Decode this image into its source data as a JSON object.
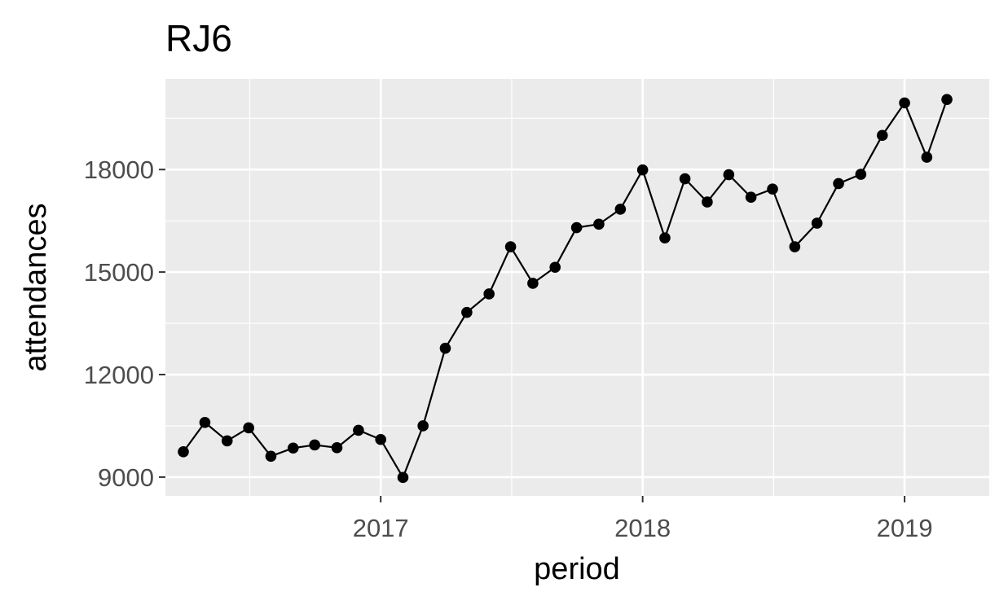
{
  "chart_data": {
    "type": "line",
    "title": "RJ6",
    "xlabel": "period",
    "ylabel": "attendances",
    "grid": true,
    "legend": "none",
    "colors": {
      "panel": "#ebebeb",
      "grid": "#ffffff",
      "line": "#000000",
      "point": "#000000"
    },
    "xlim": [
      "2016-03-07",
      "2019-04-29"
    ],
    "ylim": [
      8450,
      20650
    ],
    "x_ticks": [
      {
        "date": "2017-01-01",
        "label": "2017"
      },
      {
        "date": "2018-01-01",
        "label": "2018"
      },
      {
        "date": "2019-01-01",
        "label": "2019"
      }
    ],
    "y_ticks": [
      {
        "value": 9000,
        "label": "9000"
      },
      {
        "value": 12000,
        "label": "12000"
      },
      {
        "value": 15000,
        "label": "15000"
      },
      {
        "value": 18000,
        "label": "18000"
      }
    ],
    "series": [
      {
        "x": [
          "2016-04-01",
          "2016-05-01",
          "2016-06-01",
          "2016-07-01",
          "2016-08-01",
          "2016-09-01",
          "2016-10-01",
          "2016-11-01",
          "2016-12-01",
          "2017-01-01",
          "2017-02-01",
          "2017-03-01",
          "2017-04-01",
          "2017-05-01",
          "2017-06-01",
          "2017-07-01",
          "2017-08-01",
          "2017-09-01",
          "2017-10-01",
          "2017-11-01",
          "2017-12-01",
          "2018-01-01",
          "2018-02-01",
          "2018-03-01",
          "2018-04-01",
          "2018-05-01",
          "2018-06-01",
          "2018-07-01",
          "2018-08-01",
          "2018-09-01",
          "2018-10-01",
          "2018-11-01",
          "2018-12-01",
          "2019-01-01",
          "2019-02-01",
          "2019-03-01"
        ],
        "y": [
          9740,
          10600,
          10060,
          10440,
          9610,
          9850,
          9940,
          9860,
          10370,
          10100,
          8990,
          10500,
          12770,
          13820,
          14360,
          15740,
          14670,
          15140,
          16300,
          16400,
          16840,
          17990,
          16000,
          17730,
          17050,
          17850,
          17190,
          17430,
          15740,
          16430,
          17590,
          17860,
          19000,
          19950,
          18360,
          20050
        ]
      }
    ]
  }
}
